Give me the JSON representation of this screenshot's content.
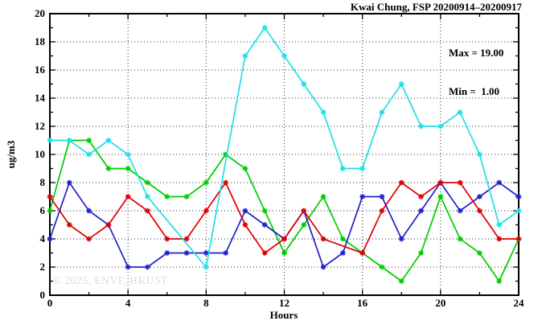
{
  "title": "Kwai Chung, FSP 20200914–20200917",
  "annotation": {
    "max_label": "Max = 19.00",
    "min_label": "Min =  1.00"
  },
  "watermark": "© 2025, ENVF, HKUST",
  "colors": {
    "frame": "#000000",
    "grid": "#2a2a2a",
    "watermark_gray": "#dbdbdb"
  },
  "chart_data": {
    "type": "line",
    "title": "Kwai Chung, FSP 20200914–20200917",
    "xlabel": "Hours",
    "ylabel": "ug/m3",
    "xlim": [
      0,
      24
    ],
    "ylim": [
      0,
      20
    ],
    "x_ticks": [
      0,
      4,
      8,
      12,
      16,
      20,
      24
    ],
    "y_ticks": [
      0,
      2,
      4,
      6,
      8,
      10,
      12,
      14,
      16,
      18,
      20
    ],
    "x_minor_step": 2,
    "y_minor_step": 1,
    "x_grid": [
      4,
      8,
      12,
      16,
      20
    ],
    "y_grid": [
      2,
      4,
      6,
      8,
      10,
      12,
      14,
      16,
      18
    ],
    "grid": true,
    "legend": "none",
    "marker": "asterisk",
    "stat_max": 19.0,
    "stat_min": 1.0,
    "x": [
      0,
      1,
      2,
      3,
      4,
      5,
      6,
      7,
      8,
      9,
      10,
      11,
      12,
      13,
      14,
      15,
      16,
      17,
      18,
      19,
      20,
      21,
      22,
      23,
      24
    ],
    "series": [
      {
        "name": "green-series",
        "color": "#00cc00",
        "values": [
          6,
          11,
          11,
          9,
          9,
          8,
          7,
          7,
          8,
          10,
          9,
          6,
          3,
          5,
          7,
          4,
          3,
          2,
          1,
          3,
          7,
          4,
          3,
          1,
          4
        ]
      },
      {
        "name": "blue-series",
        "color": "#2020cc",
        "values": [
          4,
          8,
          6,
          5,
          2,
          2,
          3,
          3,
          3,
          3,
          6,
          5,
          4,
          6,
          2,
          3,
          7,
          7,
          4,
          6,
          8,
          6,
          7,
          8,
          7
        ]
      },
      {
        "name": "red-series",
        "color": "#dd0000",
        "values": [
          7,
          5,
          4,
          5,
          7,
          6,
          4,
          4,
          6,
          8,
          5,
          3,
          4,
          6,
          4,
          null,
          3,
          6,
          8,
          7,
          8,
          8,
          6,
          4,
          4
        ]
      },
      {
        "name": "cyan-series",
        "color": "#1fdfe8",
        "values": [
          11,
          11,
          10,
          11,
          10,
          7,
          null,
          null,
          2,
          null,
          17,
          19,
          17,
          15,
          13,
          9,
          9,
          13,
          15,
          12,
          12,
          13,
          10,
          5,
          6
        ]
      }
    ]
  }
}
